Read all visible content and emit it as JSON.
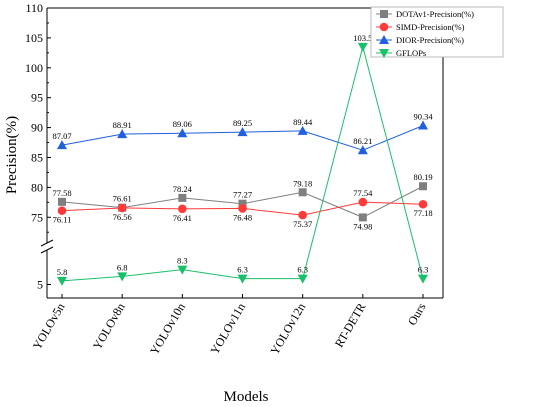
{
  "chart_data": {
    "type": "line",
    "xlabel": "Models",
    "ylabel": "Precision(%)",
    "categories": [
      "YOLOv5n",
      "YOLOv8n",
      "YOLOv10n",
      "YOLOv11n",
      "YOLOv12n",
      "RT-DETR",
      "Ours"
    ],
    "y_ticks_upper": [
      "75",
      "80",
      "85",
      "90",
      "95",
      "100",
      "105",
      "110"
    ],
    "y_ticks_lower": [
      "5"
    ],
    "ylim_upper": [
      71.2,
      110
    ],
    "ylim_lower": [
      2,
      12
    ],
    "axis_break": true,
    "legend_position": "top-right",
    "series": [
      {
        "name": "DOTAv1-Precision(%)",
        "color": "#7f7f7f",
        "marker": "square",
        "values": [
          77.58,
          76.61,
          78.24,
          77.27,
          79.18,
          74.98,
          80.19
        ],
        "labels": [
          "77.58",
          "76.61",
          "78.24",
          "77.27",
          "79.18",
          "74.98",
          "80.19"
        ]
      },
      {
        "name": "SIMD-Precision(%)",
        "color": "#ff3a3a",
        "marker": "circle",
        "values": [
          76.11,
          76.56,
          76.41,
          76.48,
          75.37,
          77.54,
          77.18
        ],
        "labels": [
          "76.11",
          "76.56",
          "76.41",
          "76.48",
          "75.37",
          "77.54",
          "77.18"
        ]
      },
      {
        "name": "DIOR-Precision(%)",
        "color": "#1f5fe0",
        "marker": "triangle-up",
        "values": [
          87.07,
          88.91,
          89.06,
          89.25,
          89.44,
          86.21,
          90.34
        ],
        "labels": [
          "87.07",
          "88.91",
          "89.06",
          "89.25",
          "89.44",
          "86.21",
          "90.34"
        ]
      },
      {
        "name": "GFLOPs",
        "color": "#19c06a",
        "marker": "triangle-down",
        "values": [
          5.8,
          6.8,
          8.3,
          6.3,
          6.3,
          103.5,
          6.3
        ],
        "labels": [
          "5.8",
          "6.8",
          "8.3",
          "6.3",
          "6.3",
          "103.5",
          "6.3"
        ]
      }
    ]
  }
}
